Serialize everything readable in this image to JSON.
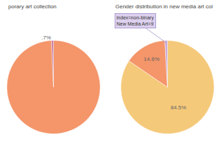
{
  "chart_data": [
    {
      "type": "pie",
      "title": "porary art collection",
      "values": [
        99.3,
        0.7
      ],
      "colors": [
        "#F4956A",
        "#C879A0"
      ],
      "value_labels": [
        null,
        ".7%"
      ],
      "data_labels": true
    },
    {
      "type": "pie",
      "title": "Gender distribution in new media art col",
      "values": [
        84.5,
        14.6,
        0.9
      ],
      "colors": [
        "#F5C97A",
        "#F4956A",
        "#C8A8D8"
      ],
      "value_labels": [
        "84.5%",
        "14.6%",
        null
      ],
      "data_labels": true,
      "annotations": [
        "index=non-binary\nNew Media Art=9"
      ]
    }
  ]
}
